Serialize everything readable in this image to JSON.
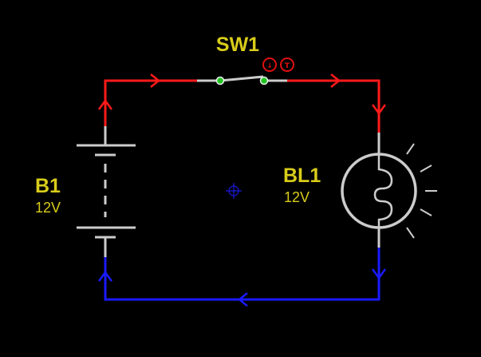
{
  "colors": {
    "background": "#000000",
    "positive_wire": "#ff1a1a",
    "negative_wire": "#1a1aff",
    "component": "#cccccc",
    "label": "#d8cc1a",
    "switch_contact": "#22c422",
    "control_button": "#e01010",
    "marker": "#1a1add"
  },
  "switch": {
    "name": "SW1",
    "icons": [
      "arrow-down-icon",
      "toggle-t-icon"
    ],
    "button_glyphs": [
      "↓",
      "T"
    ]
  },
  "battery": {
    "name": "B1",
    "value": "12V"
  },
  "bulb": {
    "name": "BL1",
    "value": "12V"
  },
  "marker_icon": "crosshair-icon"
}
